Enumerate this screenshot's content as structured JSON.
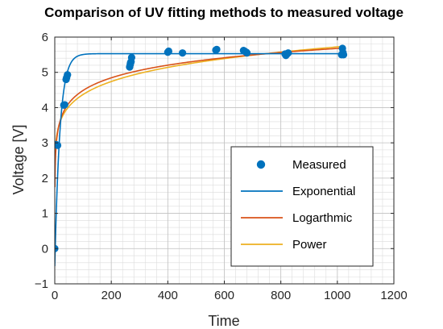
{
  "chart_data": {
    "type": "scatter",
    "title": "Comparison of UV fitting methods to measured voltage",
    "xlabel": "Time",
    "ylabel": "Voltage [V]",
    "xlim": [
      0,
      1200
    ],
    "ylim": [
      -1,
      6
    ],
    "xticks": [
      0,
      200,
      400,
      600,
      800,
      1000,
      1200
    ],
    "xtick_labels": [
      "0",
      "200",
      "400",
      "600",
      "800",
      "1000",
      "1200"
    ],
    "yticks": [
      -1,
      0,
      1,
      2,
      3,
      4,
      5,
      6
    ],
    "ytick_labels": [
      "−1",
      "0",
      "1",
      "2",
      "3",
      "4",
      "5",
      "6"
    ],
    "grid": "major and minor",
    "legend_position": "bottom-right",
    "series": [
      {
        "name": "Measured",
        "style": "markers",
        "color": "#0072BD",
        "points": [
          [
            0,
            0.0
          ],
          [
            5,
            2.95
          ],
          [
            10,
            2.93
          ],
          [
            32,
            4.07
          ],
          [
            35,
            4.08
          ],
          [
            40,
            4.8
          ],
          [
            42,
            4.85
          ],
          [
            45,
            4.93
          ],
          [
            265,
            5.15
          ],
          [
            267,
            5.22
          ],
          [
            268,
            5.27
          ],
          [
            270,
            5.3
          ],
          [
            272,
            5.42
          ],
          [
            400,
            5.57
          ],
          [
            403,
            5.6
          ],
          [
            452,
            5.55
          ],
          [
            570,
            5.63
          ],
          [
            573,
            5.65
          ],
          [
            668,
            5.62
          ],
          [
            672,
            5.6
          ],
          [
            678,
            5.57
          ],
          [
            680,
            5.55
          ],
          [
            815,
            5.52
          ],
          [
            818,
            5.48
          ],
          [
            822,
            5.52
          ],
          [
            826,
            5.55
          ],
          [
            1015,
            5.5
          ],
          [
            1018,
            5.68
          ],
          [
            1020,
            5.56
          ],
          [
            1022,
            5.5
          ]
        ]
      },
      {
        "name": "Exponential",
        "style": "line",
        "color": "#0072BD",
        "model": "exponential",
        "params": {
          "a": 5.53,
          "b": 6.03,
          "k": 0.055
        },
        "x_range": [
          0,
          1020
        ]
      },
      {
        "name": "Logarthmic",
        "style": "line",
        "color": "#D95319",
        "model": "logarithmic",
        "params": {
          "a": 2.1,
          "b": 0.518
        },
        "x_range": [
          0.5,
          1020
        ]
      },
      {
        "name": "Power",
        "style": "line",
        "color": "#EDB120",
        "model": "power",
        "params": {
          "a": 2.55,
          "b": 0.117
        },
        "x_range": [
          0.5,
          1020
        ]
      }
    ]
  }
}
